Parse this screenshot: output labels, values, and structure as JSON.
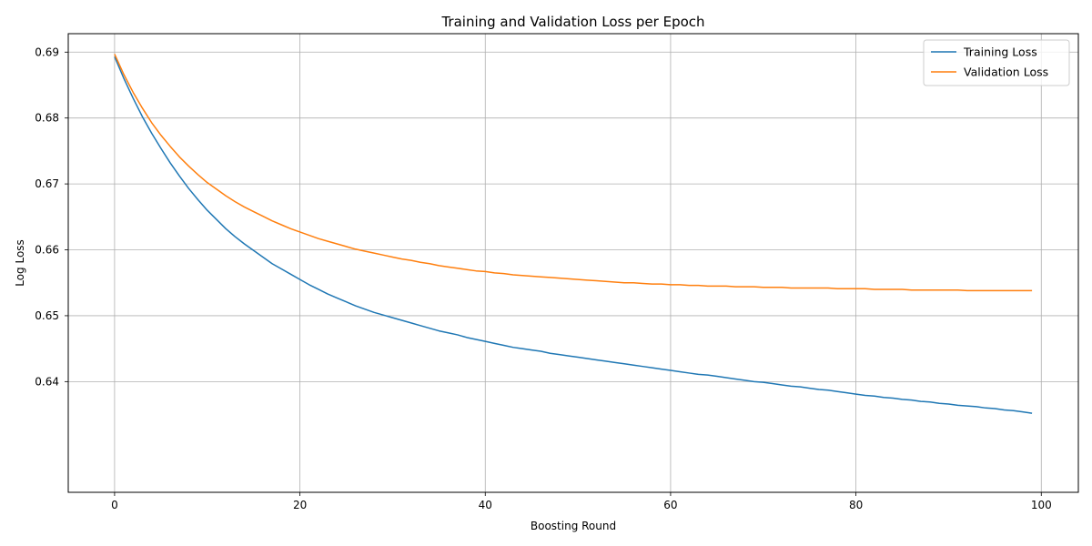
{
  "chart_data": {
    "type": "line",
    "title": "Training and Validation Loss per Epoch",
    "xlabel": "Boosting Round",
    "ylabel": "Log Loss",
    "xlim": [
      -5,
      104
    ],
    "ylim": [
      0.6232,
      0.6928
    ],
    "xticks": [
      0,
      20,
      40,
      60,
      80,
      100
    ],
    "yticks": [
      0.64,
      0.65,
      0.66,
      0.67,
      0.68,
      0.69
    ],
    "xtick_labels": [
      "0",
      "20",
      "40",
      "60",
      "80",
      "100"
    ],
    "ytick_labels": [
      "0.64",
      "0.65",
      "0.66",
      "0.67",
      "0.68",
      "0.69"
    ],
    "grid": true,
    "legend_position": "top-right",
    "x": [
      0,
      1,
      2,
      3,
      4,
      5,
      6,
      7,
      8,
      9,
      10,
      11,
      12,
      13,
      14,
      15,
      16,
      17,
      18,
      19,
      20,
      21,
      22,
      23,
      24,
      25,
      26,
      27,
      28,
      29,
      30,
      31,
      32,
      33,
      34,
      35,
      36,
      37,
      38,
      39,
      40,
      41,
      42,
      43,
      44,
      45,
      46,
      47,
      48,
      49,
      50,
      51,
      52,
      53,
      54,
      55,
      56,
      57,
      58,
      59,
      60,
      61,
      62,
      63,
      64,
      65,
      66,
      67,
      68,
      69,
      70,
      71,
      72,
      73,
      74,
      75,
      76,
      77,
      78,
      79,
      80,
      81,
      82,
      83,
      84,
      85,
      86,
      87,
      88,
      89,
      90,
      91,
      92,
      93,
      94,
      95,
      96,
      97,
      98,
      99
    ],
    "series": [
      {
        "name": "Training Loss",
        "color": "#1f77b4",
        "values": [
          0.6893,
          0.686,
          0.683,
          0.6802,
          0.6777,
          0.6754,
          0.6732,
          0.6712,
          0.6693,
          0.6676,
          0.666,
          0.6646,
          0.6632,
          0.662,
          0.6609,
          0.6599,
          0.6589,
          0.6579,
          0.6571,
          0.6563,
          0.6555,
          0.6547,
          0.654,
          0.6533,
          0.6527,
          0.6521,
          0.6515,
          0.651,
          0.6505,
          0.6501,
          0.6497,
          0.6493,
          0.6489,
          0.6485,
          0.6481,
          0.6477,
          0.6474,
          0.6471,
          0.6467,
          0.6464,
          0.6461,
          0.6458,
          0.6455,
          0.6452,
          0.645,
          0.6448,
          0.6446,
          0.6443,
          0.6441,
          0.6439,
          0.6437,
          0.6435,
          0.6433,
          0.6431,
          0.6429,
          0.6427,
          0.6425,
          0.6423,
          0.6421,
          0.6419,
          0.6417,
          0.6415,
          0.6413,
          0.6411,
          0.641,
          0.6408,
          0.6406,
          0.6404,
          0.6402,
          0.64,
          0.6399,
          0.6397,
          0.6395,
          0.6393,
          0.6392,
          0.639,
          0.6388,
          0.6387,
          0.6385,
          0.6383,
          0.6381,
          0.6379,
          0.6378,
          0.6376,
          0.6375,
          0.6373,
          0.6372,
          0.637,
          0.6369,
          0.6367,
          0.6366,
          0.6364,
          0.6363,
          0.6362,
          0.636,
          0.6359,
          0.6357,
          0.6356,
          0.6354,
          0.6352
        ]
      },
      {
        "name": "Validation Loss",
        "color": "#ff7f0e",
        "values": [
          0.6897,
          0.6866,
          0.6839,
          0.6815,
          0.6793,
          0.6774,
          0.6757,
          0.6741,
          0.6727,
          0.6714,
          0.6702,
          0.6692,
          0.6682,
          0.6673,
          0.6665,
          0.6658,
          0.6651,
          0.6644,
          0.6638,
          0.6632,
          0.6627,
          0.6622,
          0.6617,
          0.6613,
          0.6609,
          0.6605,
          0.6601,
          0.6598,
          0.6595,
          0.6592,
          0.6589,
          0.6586,
          0.6584,
          0.6581,
          0.6579,
          0.6576,
          0.6574,
          0.6572,
          0.657,
          0.6568,
          0.6567,
          0.6565,
          0.6564,
          0.6562,
          0.6561,
          0.656,
          0.6559,
          0.6558,
          0.6557,
          0.6556,
          0.6555,
          0.6554,
          0.6553,
          0.6552,
          0.6551,
          0.655,
          0.655,
          0.6549,
          0.6548,
          0.6548,
          0.6547,
          0.6547,
          0.6546,
          0.6546,
          0.6545,
          0.6545,
          0.6545,
          0.6544,
          0.6544,
          0.6544,
          0.6543,
          0.6543,
          0.6543,
          0.6542,
          0.6542,
          0.6542,
          0.6542,
          0.6542,
          0.6541,
          0.6541,
          0.6541,
          0.6541,
          0.654,
          0.654,
          0.654,
          0.654,
          0.6539,
          0.6539,
          0.6539,
          0.6539,
          0.6539,
          0.6539,
          0.6538,
          0.6538,
          0.6538,
          0.6538,
          0.6538,
          0.6538,
          0.6538,
          0.6538
        ]
      }
    ]
  }
}
